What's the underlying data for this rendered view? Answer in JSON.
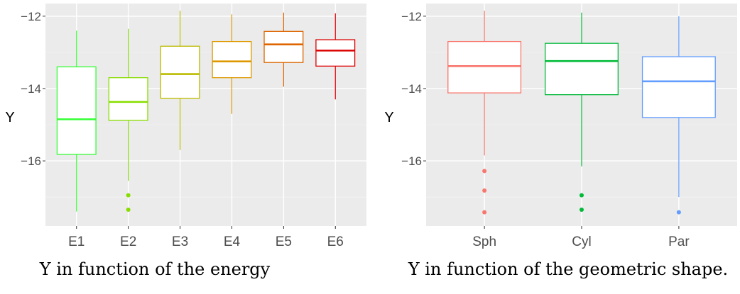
{
  "chart_data": [
    {
      "type": "box",
      "caption": "Y in function of the energy",
      "ylabel": "Y",
      "xlabel": "",
      "ylim": [
        -17.8,
        -11.65
      ],
      "yticks": [
        -16,
        -14,
        -12
      ],
      "yticklabels": [
        "−16",
        "−14",
        "−12"
      ],
      "grid": true,
      "legend": "none",
      "categories": [
        "E1",
        "E2",
        "E3",
        "E4",
        "E5",
        "E6"
      ],
      "colors": [
        "#33ff33",
        "#88dd00",
        "#bbbb00",
        "#dd9900",
        "#dd6600",
        "#dd0000"
      ],
      "boxes": [
        {
          "min": -17.4,
          "q1": -15.82,
          "median": -14.85,
          "q3": -13.4,
          "max": -12.4,
          "outliers": []
        },
        {
          "min": -16.55,
          "q1": -14.88,
          "median": -14.37,
          "q3": -13.7,
          "max": -12.35,
          "outliers": [
            -16.95,
            -17.35
          ]
        },
        {
          "min": -15.7,
          "q1": -14.27,
          "median": -13.6,
          "q3": -12.83,
          "max": -11.85,
          "outliers": []
        },
        {
          "min": -14.7,
          "q1": -13.7,
          "median": -13.25,
          "q3": -12.7,
          "max": -11.95,
          "outliers": []
        },
        {
          "min": -13.95,
          "q1": -13.28,
          "median": -12.78,
          "q3": -12.42,
          "max": -11.9,
          "outliers": []
        },
        {
          "min": -14.3,
          "q1": -13.38,
          "median": -12.95,
          "q3": -12.65,
          "max": -11.92,
          "outliers": []
        }
      ]
    },
    {
      "type": "box",
      "caption": "Y in function of the geometric shape.",
      "ylabel": "Y",
      "xlabel": "",
      "ylim": [
        -17.8,
        -11.65
      ],
      "yticks": [
        -16,
        -14,
        -12
      ],
      "yticklabels": [
        "−16",
        "−14",
        "−12"
      ],
      "grid": true,
      "legend": "none",
      "categories": [
        "Sph",
        "Cyl",
        "Par"
      ],
      "colors": [
        "#f8766d",
        "#00ba38",
        "#619cff"
      ],
      "boxes": [
        {
          "min": -15.85,
          "q1": -14.12,
          "median": -13.38,
          "q3": -12.7,
          "max": -11.85,
          "outliers": [
            -16.28,
            -16.82,
            -17.42
          ]
        },
        {
          "min": -16.15,
          "q1": -14.17,
          "median": -13.24,
          "q3": -12.75,
          "max": -11.9,
          "outliers": [
            -16.95,
            -17.35
          ]
        },
        {
          "min": -17.0,
          "q1": -14.8,
          "median": -13.8,
          "q3": -13.12,
          "max": -12.0,
          "outliers": [
            -17.42
          ]
        }
      ]
    }
  ]
}
